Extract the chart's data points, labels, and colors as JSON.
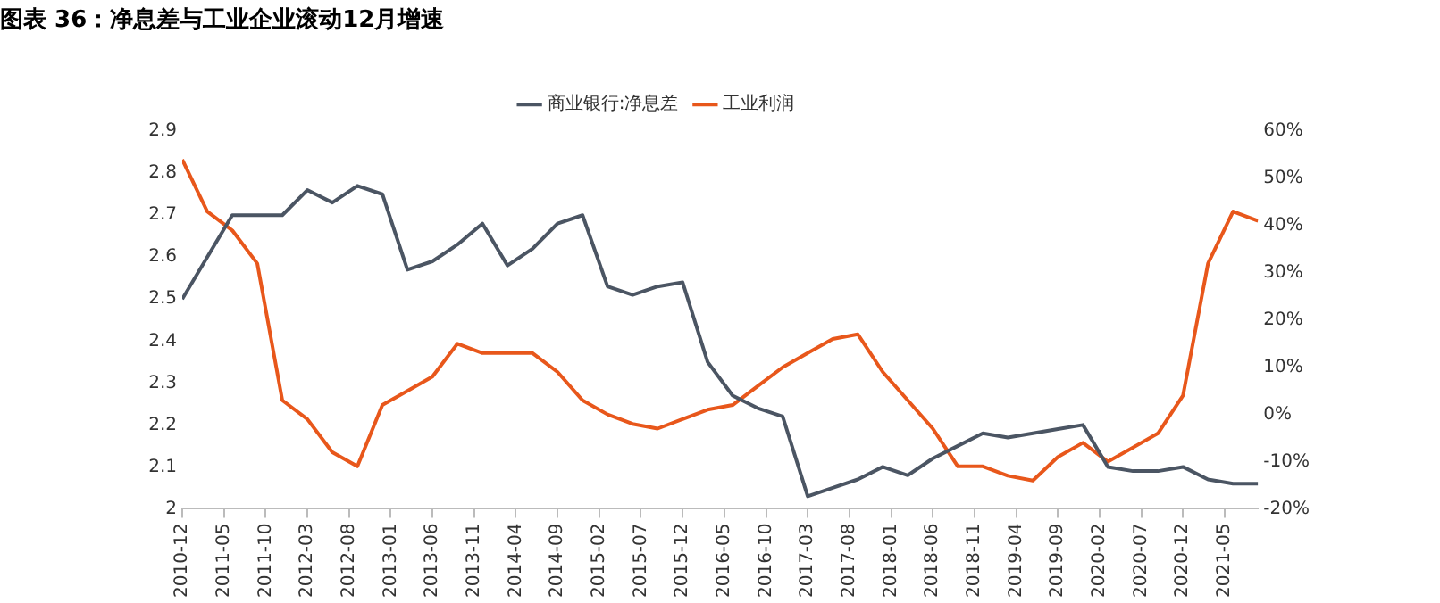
{
  "chart_data": {
    "type": "line",
    "title": "图表 36：净息差与工业企业滚动12月增速",
    "x": [
      "2010-12",
      "2011-03",
      "2011-06",
      "2011-09",
      "2011-12",
      "2012-03",
      "2012-06",
      "2012-09",
      "2012-12",
      "2013-03",
      "2013-06",
      "2013-09",
      "2013-12",
      "2014-03",
      "2014-06",
      "2014-09",
      "2014-12",
      "2015-03",
      "2015-06",
      "2015-09",
      "2015-12",
      "2016-03",
      "2016-06",
      "2016-09",
      "2016-12",
      "2017-03",
      "2017-06",
      "2017-09",
      "2017-12",
      "2018-03",
      "2018-06",
      "2018-09",
      "2018-12",
      "2019-03",
      "2019-06",
      "2019-09",
      "2019-12",
      "2020-03",
      "2020-06",
      "2020-09",
      "2020-12",
      "2021-03",
      "2021-06",
      "2021-09"
    ],
    "series": [
      {
        "name": "商业银行:净息差",
        "color": "#4b5563",
        "values": [
          2.5,
          2.6,
          2.7,
          2.7,
          2.7,
          2.76,
          2.73,
          2.77,
          2.75,
          2.57,
          2.59,
          2.63,
          2.68,
          2.58,
          2.62,
          2.68,
          2.7,
          2.53,
          2.51,
          2.53,
          2.54,
          2.35,
          2.27,
          2.24,
          2.22,
          2.03,
          2.05,
          2.07,
          2.1,
          2.08,
          2.12,
          2.15,
          2.18,
          2.17,
          2.18,
          2.19,
          2.2,
          2.1,
          2.09,
          2.09,
          2.1,
          2.07,
          2.06,
          2.06
        ]
      },
      {
        "name": "工业利润",
        "color": "#e8571b",
        "axis": "y2",
        "values": [
          54,
          43,
          39,
          32,
          3,
          -1,
          -8,
          -11,
          2,
          5,
          8,
          15,
          13,
          13,
          13,
          9,
          3,
          0,
          -2,
          -3,
          -1,
          1,
          2,
          6,
          10,
          13,
          16,
          17,
          9,
          3,
          -3,
          -11,
          -11,
          -13,
          -14,
          -9,
          -6,
          -10,
          -7,
          -4,
          4,
          32,
          43,
          41
        ]
      }
    ],
    "xlim": [
      "2010-12",
      "2021-09"
    ],
    "xticks": [
      "2010-12",
      "2011-05",
      "2011-10",
      "2012-03",
      "2012-08",
      "2013-01",
      "2013-06",
      "2013-11",
      "2014-04",
      "2014-09",
      "2015-02",
      "2015-07",
      "2015-12",
      "2016-05",
      "2016-10",
      "2017-03",
      "2017-08",
      "2018-01",
      "2018-06",
      "2018-11",
      "2019-04",
      "2019-09",
      "2020-02",
      "2020-07",
      "2020-12",
      "2021-05"
    ],
    "ylim": [
      2,
      2.9
    ],
    "yticks": [
      2,
      2.1,
      2.2,
      2.3,
      2.4,
      2.5,
      2.6,
      2.7,
      2.8,
      2.9
    ],
    "y2lim": [
      -20,
      60
    ],
    "y2ticks": [
      {
        "value": -20,
        "label": "-20%"
      },
      {
        "value": -10,
        "label": "-10%"
      },
      {
        "value": 0,
        "label": "0%"
      },
      {
        "value": 10,
        "label": "10%"
      },
      {
        "value": 20,
        "label": "20%"
      },
      {
        "value": 30,
        "label": "30%"
      },
      {
        "value": 40,
        "label": "40%"
      },
      {
        "value": 50,
        "label": "50%"
      },
      {
        "value": 60,
        "label": "60%"
      }
    ],
    "grid": false,
    "legend": "top",
    "marker": "none",
    "line_style": "solid"
  }
}
